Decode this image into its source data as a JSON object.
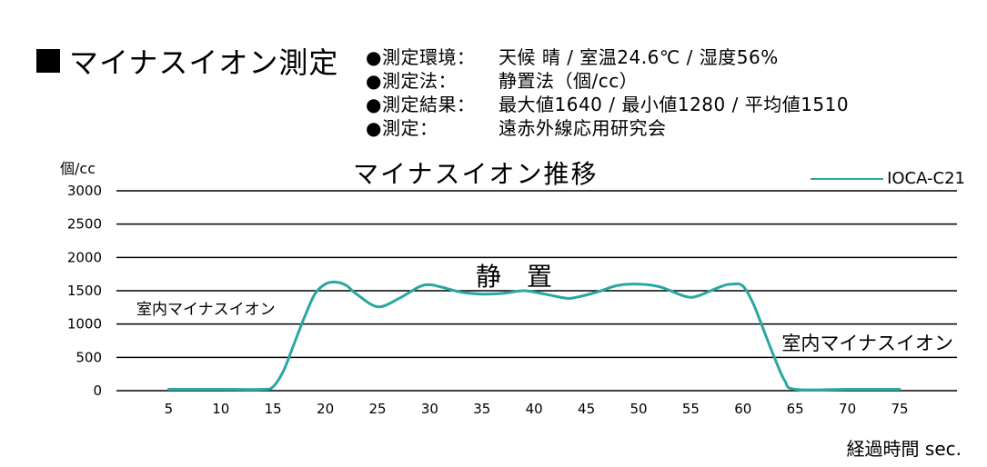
{
  "heading": "マイナスイオン測定",
  "info": [
    {
      "label": "●測定環境：",
      "value": "天候 晴 / 室温24.6℃ / 湿度56%"
    },
    {
      "label": "●測定法：",
      "value": "静置法（個/cc）"
    },
    {
      "label": "●測定結果：",
      "value": "最大値1640 / 最小値1280 / 平均値1510"
    },
    {
      "label": "●測定：",
      "value": "遠赤外線応用研究会"
    }
  ],
  "colors": {
    "series": "#2aa7a0",
    "grid": "#000000"
  },
  "chart_data": {
    "type": "line",
    "title": "マイナスイオン推移",
    "ylabel": "個/cc",
    "xlabel": "経過時間 sec.",
    "ylim": [
      0,
      3000
    ],
    "xlim": [
      0,
      78
    ],
    "yticks": [
      0,
      500,
      1000,
      1500,
      2000,
      2500,
      3000
    ],
    "xticks": [
      5,
      10,
      15,
      20,
      25,
      30,
      35,
      40,
      45,
      50,
      55,
      60,
      65,
      70,
      75
    ],
    "grid": true,
    "legend": "top-right",
    "series": [
      {
        "name": "IOCA-C21",
        "x": [
          5,
          10,
          14,
          15,
          16,
          17,
          18,
          19,
          20,
          21,
          22,
          23,
          25,
          27,
          29,
          30,
          31,
          33,
          35,
          37,
          39,
          41,
          43,
          44,
          46,
          48,
          50,
          52,
          54,
          55,
          56,
          58,
          59,
          60,
          61,
          62,
          63,
          64,
          65,
          70,
          75
        ],
        "y": [
          20,
          20,
          20,
          60,
          300,
          700,
          1100,
          1450,
          1600,
          1630,
          1580,
          1450,
          1260,
          1380,
          1560,
          1590,
          1560,
          1480,
          1450,
          1460,
          1500,
          1450,
          1390,
          1400,
          1480,
          1580,
          1600,
          1560,
          1440,
          1400,
          1440,
          1570,
          1600,
          1570,
          1300,
          900,
          500,
          150,
          20,
          20,
          20
        ]
      }
    ],
    "annotations": [
      "静　置",
      "室内マイナスイオン",
      "室内マイナスイオン"
    ]
  }
}
